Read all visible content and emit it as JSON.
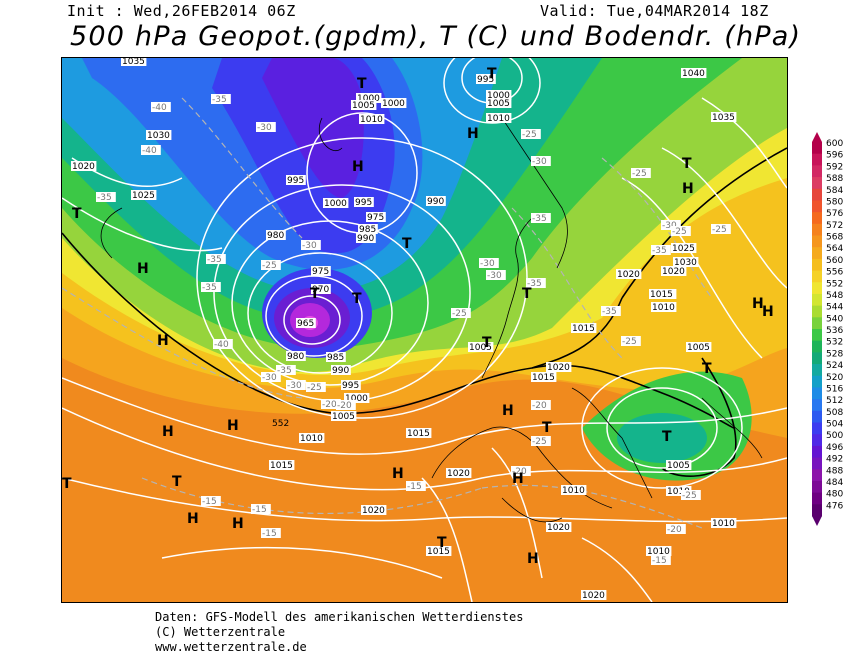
{
  "header": {
    "init": "Init : Wed,26FEB2014 06Z",
    "valid": "Valid: Tue,04MAR2014 18Z",
    "title": "500 hPa Geopot.(gpdm), T (C) und Bodendr. (hPa)"
  },
  "footer": {
    "line1": "Daten: GFS-Modell des amerikanischen Wetterdienstes",
    "line2": "(C) Wetterzentrale",
    "line3": "www.wetterzentrale.de"
  },
  "legend": {
    "levels": [
      "600",
      "596",
      "592",
      "588",
      "584",
      "580",
      "576",
      "572",
      "568",
      "564",
      "560",
      "556",
      "552",
      "548",
      "544",
      "540",
      "536",
      "532",
      "528",
      "524",
      "520",
      "516",
      "512",
      "508",
      "504",
      "500",
      "496",
      "492",
      "488",
      "484",
      "480",
      "476"
    ],
    "colors": [
      "#b4004a",
      "#c8145a",
      "#d22864",
      "#dc3c64",
      "#e6463c",
      "#f0552d",
      "#f56a1e",
      "#f5821e",
      "#f5961e",
      "#f5aa1e",
      "#f5be1e",
      "#f5d228",
      "#f0e632",
      "#d2e632",
      "#aadc32",
      "#78d23c",
      "#3cc846",
      "#1eb45a",
      "#14aa78",
      "#14aaa0",
      "#14a0c8",
      "#1e8ce6",
      "#2878f0",
      "#2d5af0",
      "#3c3cf0",
      "#5028e6",
      "#6414d2",
      "#7814be",
      "#8c14aa",
      "#7d0a96",
      "#6e0082",
      "#5a006e"
    ]
  },
  "map": {
    "pressure_labels": [
      "1035",
      "1000",
      "1005",
      "1000",
      "1010",
      "995",
      "1000",
      "1005",
      "1010",
      "1040",
      "1030",
      "1035",
      "1020",
      "1025",
      "995",
      "1000",
      "995",
      "990",
      "985",
      "980",
      "990",
      "975",
      "975",
      "970",
      "965",
      "980",
      "985",
      "990",
      "995",
      "1000",
      "1005",
      "1010",
      "1015",
      "1015",
      "1020",
      "1020",
      "1020",
      "1015",
      "1010",
      "1010",
      "1005",
      "1010",
      "1005",
      "1015",
      "1020",
      "1030",
      "1025",
      "1020",
      "1015",
      "1015",
      "1020",
      "1010",
      "1010",
      "1005",
      "1015",
      "1020"
    ],
    "temp_labels": [
      "-40",
      "-40",
      "-35",
      "-35",
      "-35",
      "-35",
      "-40",
      "-30",
      "-35",
      "-30",
      "-25",
      "-20",
      "-20",
      "-30",
      "-25",
      "-30",
      "-25",
      "-30",
      "-35",
      "-35",
      "-30",
      "-30",
      "-35",
      "-25",
      "-25",
      "-20",
      "-25",
      "-15",
      "-15",
      "-15",
      "-15",
      "-20",
      "-20",
      "-15",
      "-25",
      "-25",
      "-25",
      "-30",
      "-35",
      "-25"
    ],
    "height_label": "552",
    "symbols": {
      "high": [
        "H",
        "H",
        "H",
        "H",
        "H",
        "H",
        "H",
        "H",
        "H",
        "H",
        "H",
        "H",
        "H",
        "H",
        "H"
      ],
      "low": [
        "T",
        "T",
        "T",
        "T",
        "T",
        "T",
        "T",
        "T",
        "T",
        "T",
        "T",
        "T",
        "T",
        "T",
        "T"
      ]
    }
  }
}
